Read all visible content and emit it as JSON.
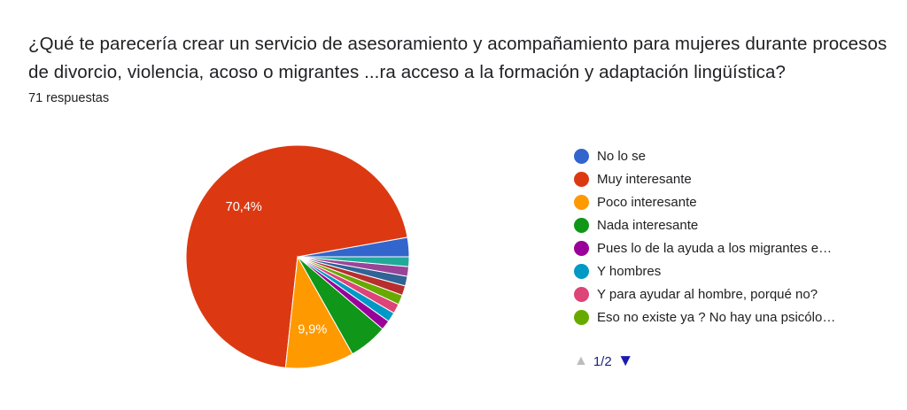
{
  "question": "¿Qué te parecería crear un servicio de asesoramiento y acompañamiento para mujeres durante procesos de divorcio, violencia, acoso o migrantes ...ra acceso a la formación y adaptación lingüística?",
  "responses": "71 respuestas",
  "pager": {
    "page": "1/2",
    "prev_icon": "triangle-up-icon",
    "next_icon": "triangle-down-icon"
  },
  "chart_data": {
    "type": "pie",
    "total": 71,
    "series": [
      {
        "name": "No lo se",
        "value": 2.8,
        "color": "#3366cc"
      },
      {
        "name": "Muy interesante",
        "value": 70.4,
        "color": "#dc3912",
        "label": "70,4%"
      },
      {
        "name": "Poco interesante",
        "value": 9.9,
        "color": "#ff9900",
        "label": "9,9%"
      },
      {
        "name": "Nada interesante",
        "value": 5.6,
        "color": "#109618"
      },
      {
        "name": "Pues lo de la ayuda a los migrantes e…",
        "value": 1.4,
        "color": "#990099"
      },
      {
        "name": "Y hombres",
        "value": 1.4,
        "color": "#0099c6"
      },
      {
        "name": "Y para ayudar al hombre, porqué no?",
        "value": 1.4,
        "color": "#dd4477"
      },
      {
        "name": "Eso no existe ya ? No hay una psicólo…",
        "value": 1.4,
        "color": "#66aa00"
      },
      {
        "name": "",
        "value": 1.4,
        "color": "#b82e2e"
      },
      {
        "name": "",
        "value": 1.4,
        "color": "#316395"
      },
      {
        "name": "",
        "value": 1.4,
        "color": "#994499"
      },
      {
        "name": "",
        "value": 1.4,
        "color": "#22aa99"
      }
    ]
  }
}
